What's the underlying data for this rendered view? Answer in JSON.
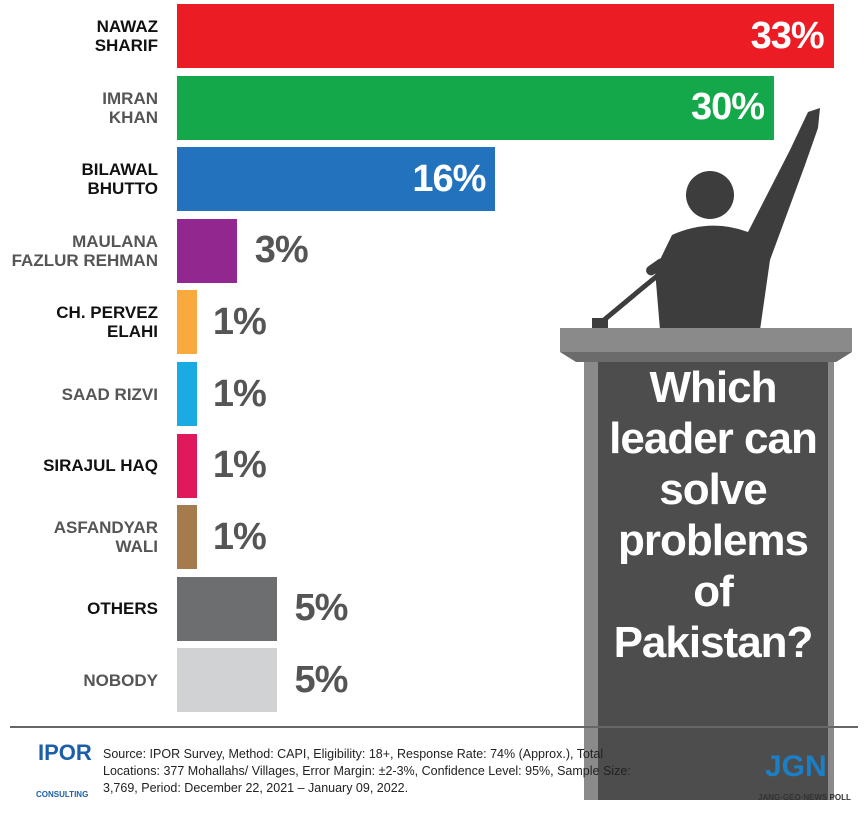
{
  "chart_data": {
    "type": "bar",
    "orientation": "horizontal",
    "title": "Which\nleader can\nsolve\nproblems\nof\nPakistan?",
    "categories": [
      "NAWAZ\nSHARIF",
      "IMRAN\nKHAN",
      "BILAWAL\nBHUTTO",
      "MAULANA\nFAZLUR REHMAN",
      "CH. PERVEZ\nELAHI",
      "SAAD RIZVI",
      "SIRAJUL HAQ",
      "ASFANDYAR\nWALI",
      "OTHERS",
      "NOBODY"
    ],
    "values": [
      33,
      30,
      16,
      3,
      1,
      1,
      1,
      1,
      5,
      5
    ],
    "value_labels": [
      "33%",
      "30%",
      "16%",
      "3%",
      "1%",
      "1%",
      "1%",
      "1%",
      "5%",
      "5%"
    ],
    "colors": [
      "#ec1c24",
      "#14a84a",
      "#2372be",
      "#92278f",
      "#f9a93d",
      "#1aabe3",
      "#e0195c",
      "#a57a4c",
      "#6d6e70",
      "#d1d2d4"
    ],
    "source": "Source:  IPOR Survey, Method: CAPI, Eligibility: 18+, Response Rate: 74% (Approx.), Total Locations: 377 Mohallahs/ Villages, Error Margin: ±2-3%, Confidence Level:  95%, Sample Size: 3,769, Period: December 22, 2021 – January 09, 2022.",
    "logos": [
      "IPOR",
      "CONSULTING",
      "JGN",
      "JANG·GEO·NEWS POLL"
    ]
  }
}
